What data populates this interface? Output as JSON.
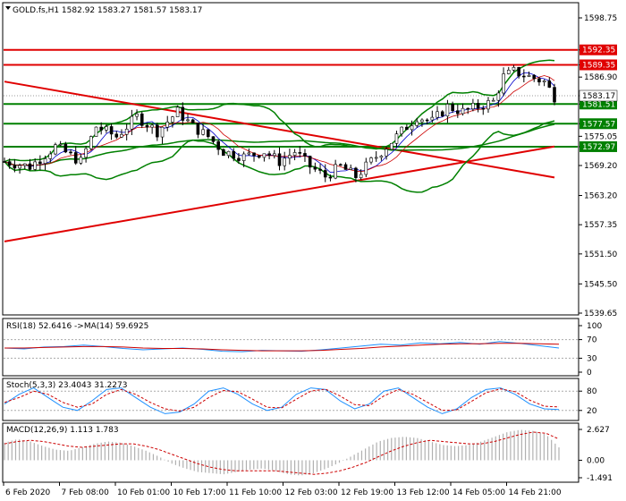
{
  "chart_data": [
    {
      "type": "candlestick",
      "symbol": "GOLD.fs,H1",
      "quote": {
        "open": "1582.92",
        "high": "1583.27",
        "low": "1581.57",
        "close": "1583.17"
      },
      "y_ticks": [
        "1598.75",
        "1592.35",
        "1589.35",
        "1586.90",
        "1583.17",
        "1581.51",
        "1577.57",
        "1575.05",
        "1572.97",
        "1569.20",
        "1563.20",
        "1557.35",
        "1551.50",
        "1545.50",
        "1539.65"
      ],
      "ylim": [
        1539.65,
        1598.75
      ],
      "x_labels": [
        "6 Feb 2020",
        "7 Feb 08:00",
        "10 Feb 01:00",
        "10 Feb 17:00",
        "11 Feb 10:00",
        "12 Feb 03:00",
        "12 Feb 19:00",
        "13 Feb 12:00",
        "14 Feb 05:00",
        "14 Feb 21:00"
      ],
      "price_path": [
        [
          0,
          1570
        ],
        [
          5,
          1569
        ],
        [
          10,
          1573
        ],
        [
          15,
          1570
        ],
        [
          18,
          1577
        ],
        [
          22,
          1575
        ],
        [
          26,
          1579
        ],
        [
          30,
          1576
        ],
        [
          34,
          1580
        ],
        [
          37,
          1577
        ],
        [
          40,
          1575
        ],
        [
          43,
          1572
        ],
        [
          47,
          1571
        ],
        [
          51,
          1572
        ],
        [
          54,
          1570
        ],
        [
          57,
          1572
        ],
        [
          60,
          1569
        ],
        [
          63,
          1567
        ],
        [
          66,
          1569
        ],
        [
          69,
          1567
        ],
        [
          72,
          1570
        ],
        [
          75,
          1573
        ],
        [
          78,
          1576
        ],
        [
          81,
          1579
        ],
        [
          84,
          1578
        ],
        [
          87,
          1581
        ],
        [
          90,
          1580
        ],
        [
          93,
          1581
        ],
        [
          96,
          1582
        ],
        [
          98,
          1587
        ],
        [
          100,
          1588
        ],
        [
          103,
          1587
        ],
        [
          106,
          1586
        ],
        [
          108,
          1583
        ]
      ],
      "levels": [
        {
          "price": 1592.35,
          "label": "1592.35",
          "color": "#e00000"
        },
        {
          "price": 1589.35,
          "label": "1589.35",
          "color": "#e00000"
        },
        {
          "price": 1581.51,
          "label": "1581.51",
          "color": "#008000"
        },
        {
          "price": 1577.57,
          "label": "1577.57",
          "color": "#008000"
        },
        {
          "price": 1572.97,
          "label": "1572.97",
          "color": "#008000"
        }
      ],
      "current_price": {
        "price": 1583.17,
        "label": "1583.17"
      },
      "trendlines": [
        {
          "from": [
            0,
            1586.0
          ],
          "to": [
            108,
            1566.8
          ],
          "color": "#e00000"
        },
        {
          "from": [
            0,
            1554.0
          ],
          "to": [
            108,
            1573.0
          ],
          "color": "#e00000"
        }
      ]
    },
    {
      "type": "line",
      "title": "RSI(18) 52.6416 ->MA(14) 59.6925",
      "ylim": [
        0,
        100
      ],
      "y_ticks": [
        "100",
        "70",
        "30",
        "0"
      ],
      "series": [
        {
          "values": [
            52,
            50,
            54,
            55,
            58,
            55,
            51,
            48,
            50,
            52,
            49,
            45,
            44,
            47,
            46,
            45,
            48,
            52,
            56,
            60,
            58,
            63,
            61,
            64,
            60,
            66,
            62,
            57,
            52
          ]
        },
        {
          "values": [
            52,
            52,
            53,
            54,
            55,
            55,
            54,
            52,
            51,
            51,
            50,
            48,
            47,
            46,
            46,
            46,
            47,
            49,
            51,
            54,
            56,
            58,
            60,
            61,
            61,
            62,
            62,
            61,
            60
          ]
        }
      ]
    },
    {
      "type": "line",
      "title": "Stoch(5,3,3) 23.4043 31.2273",
      "ylim": [
        0,
        100
      ],
      "y_ticks": [
        "80",
        "20"
      ],
      "series": [
        {
          "values": [
            40,
            70,
            90,
            60,
            30,
            20,
            50,
            85,
            90,
            60,
            30,
            10,
            15,
            40,
            80,
            90,
            70,
            40,
            20,
            30,
            70,
            90,
            85,
            50,
            25,
            40,
            80,
            90,
            60,
            30,
            10,
            25,
            60,
            85,
            90,
            70,
            40,
            25,
            23
          ]
        },
        {
          "values": [
            45,
            60,
            80,
            70,
            45,
            30,
            40,
            70,
            85,
            70,
            45,
            25,
            18,
            30,
            60,
            82,
            78,
            55,
            30,
            28,
            55,
            80,
            86,
            65,
            38,
            35,
            65,
            85,
            70,
            45,
            20,
            22,
            48,
            75,
            87,
            78,
            52,
            33,
            31
          ]
        }
      ]
    },
    {
      "type": "bar",
      "title": "MACD(12,26,9) 1.113 1.783",
      "ylim": [
        -1.491,
        2.627
      ],
      "y_ticks": [
        "2.627",
        "0.00",
        "-1.491"
      ],
      "values": [
        1.5,
        1.8,
        1.6,
        1.2,
        0.9,
        0.8,
        1.1,
        1.4,
        1.6,
        1.5,
        1.2,
        0.8,
        0.3,
        -0.3,
        -0.7,
        -1.0,
        -1.1,
        -1.2,
        -1.0,
        -0.8,
        -0.7,
        -0.9,
        -1.2,
        -1.3,
        -1.1,
        -0.7,
        -0.2,
        0.4,
        1.0,
        1.6,
        1.9,
        2.0,
        1.9,
        1.6,
        1.3,
        1.2,
        1.3,
        1.6,
        2.0,
        2.4,
        2.6,
        2.5,
        2.2,
        1.1
      ],
      "signal": [
        1.4,
        1.6,
        1.7,
        1.6,
        1.4,
        1.2,
        1.1,
        1.2,
        1.3,
        1.4,
        1.4,
        1.2,
        0.9,
        0.5,
        0.1,
        -0.3,
        -0.6,
        -0.8,
        -0.9,
        -0.9,
        -0.9,
        -0.9,
        -1.0,
        -1.1,
        -1.2,
        -1.1,
        -0.9,
        -0.6,
        -0.2,
        0.3,
        0.8,
        1.2,
        1.5,
        1.7,
        1.6,
        1.5,
        1.4,
        1.4,
        1.6,
        1.9,
        2.2,
        2.4,
        2.3,
        1.8
      ]
    }
  ]
}
